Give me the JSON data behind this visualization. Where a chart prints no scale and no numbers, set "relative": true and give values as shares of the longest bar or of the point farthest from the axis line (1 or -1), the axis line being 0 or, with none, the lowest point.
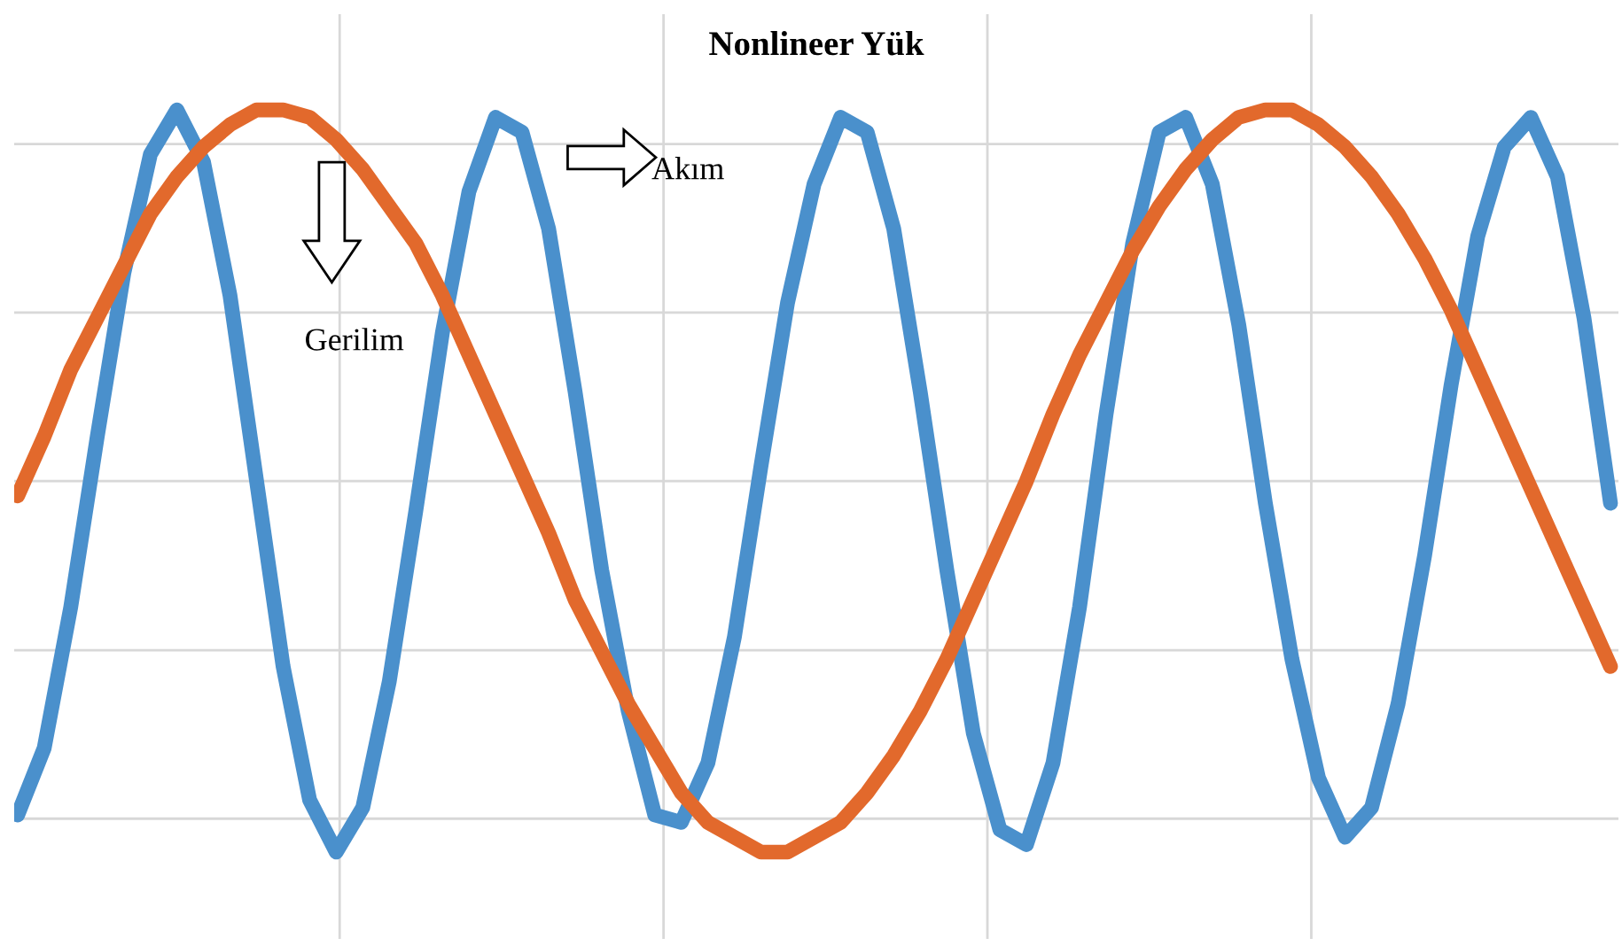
{
  "chart_data": {
    "type": "line",
    "title": "Nonlineer Yük",
    "relative": true,
    "grid": true,
    "categories": [
      null,
      null,
      null,
      null,
      null,
      null,
      null,
      null,
      null,
      null,
      null,
      null,
      null,
      null,
      null,
      null,
      null,
      null,
      null,
      null,
      null,
      null,
      null,
      null,
      null,
      null,
      null,
      null,
      null,
      null,
      null,
      null,
      null,
      null,
      null,
      null,
      null,
      null,
      null,
      null,
      null,
      null,
      null,
      null,
      null,
      null,
      null,
      null,
      null,
      null,
      null,
      null,
      null,
      null,
      null,
      null,
      null,
      null,
      null,
      null,
      null
    ],
    "annotations": [
      "Gerilim",
      "Akım"
    ],
    "series": [
      {
        "color": "#4a90cc",
        "values": [
          0.05,
          0.14,
          0.33,
          0.56,
          0.78,
          0.94,
          1.0,
          0.93,
          0.75,
          0.5,
          0.25,
          0.07,
          0.0,
          0.06,
          0.23,
          0.46,
          0.7,
          0.89,
          0.99,
          0.97,
          0.84,
          0.62,
          0.38,
          0.19,
          0.05,
          0.04,
          0.12,
          0.29,
          0.52,
          0.74,
          0.9,
          0.99,
          0.97,
          0.84,
          0.62,
          0.38,
          0.16,
          0.03,
          0.01,
          0.12,
          0.33,
          0.59,
          0.82,
          0.97,
          0.99,
          0.9,
          0.71,
          0.47,
          0.26,
          0.1,
          0.02,
          0.06,
          0.2,
          0.4,
          0.63,
          0.83,
          0.95,
          0.99,
          0.91,
          0.72,
          0.47
        ]
      },
      {
        "color": "#e2692c",
        "values": [
          0.48,
          0.56,
          0.65,
          0.72,
          0.79,
          0.86,
          0.91,
          0.95,
          0.98,
          1.0,
          1.0,
          0.99,
          0.96,
          0.92,
          0.87,
          0.82,
          0.75,
          0.67,
          0.59,
          0.51,
          0.43,
          0.34,
          0.27,
          0.2,
          0.14,
          0.08,
          0.04,
          0.02,
          0.0,
          0.0,
          0.02,
          0.04,
          0.08,
          0.13,
          0.19,
          0.26,
          0.34,
          0.42,
          0.5,
          0.59,
          0.67,
          0.74,
          0.81,
          0.87,
          0.92,
          0.96,
          0.99,
          1.0,
          1.0,
          0.98,
          0.95,
          0.91,
          0.86,
          0.8,
          0.73,
          0.65,
          0.57,
          0.49,
          0.41,
          0.33,
          0.25
        ]
      }
    ]
  }
}
